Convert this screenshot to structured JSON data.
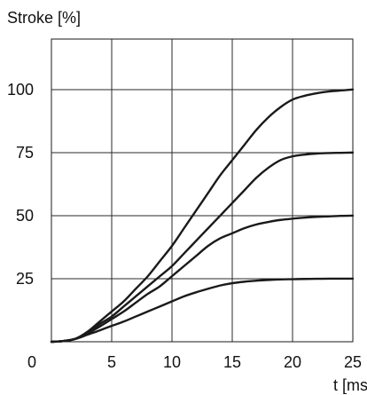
{
  "chart_data": {
    "type": "line",
    "title": "",
    "ylabel": "Stroke [%]",
    "xlabel": "t [ms]",
    "xlim": [
      0,
      25
    ],
    "ylim": [
      0,
      120
    ],
    "grid": true,
    "x_ticks": [
      0,
      5,
      10,
      15,
      20,
      25
    ],
    "y_ticks": [
      25,
      50,
      75,
      100
    ],
    "x_tick_labels": [
      "0",
      "5",
      "10",
      "15",
      "20",
      "25"
    ],
    "y_tick_labels": [
      "25",
      "50",
      "75",
      "100"
    ],
    "x": [
      0,
      1,
      2,
      3,
      4,
      5,
      6,
      7,
      8,
      9,
      10,
      11,
      12,
      13,
      14,
      15,
      16,
      17,
      18,
      19,
      20,
      21,
      22,
      23,
      24,
      25
    ],
    "series": [
      {
        "values": [
          0,
          0.3,
          1.2,
          4,
          8,
          12,
          16,
          21,
          26,
          32,
          38,
          45,
          52,
          59,
          66,
          72,
          78,
          84,
          89,
          93,
          96,
          97.5,
          98.5,
          99.2,
          99.6,
          100
        ]
      },
      {
        "values": [
          0,
          0.3,
          1.2,
          3.5,
          7,
          10,
          14,
          18,
          22,
          26,
          30,
          35,
          40,
          45,
          50,
          55,
          60,
          65,
          69,
          72,
          73.5,
          74.2,
          74.6,
          74.8,
          74.9,
          75
        ]
      },
      {
        "values": [
          0,
          0.3,
          1.2,
          3.3,
          6,
          9,
          12,
          15.5,
          19,
          22,
          26,
          30,
          34,
          38,
          41,
          43,
          45,
          46.5,
          47.5,
          48.3,
          48.8,
          49.2,
          49.5,
          49.7,
          49.9,
          50
        ]
      },
      {
        "values": [
          0,
          0.3,
          1.1,
          2.8,
          4.5,
          6.3,
          8,
          10,
          12,
          14,
          16,
          18,
          19.6,
          21,
          22.3,
          23.2,
          23.8,
          24.2,
          24.5,
          24.7,
          24.8,
          24.9,
          24.95,
          25,
          25,
          25
        ]
      }
    ]
  }
}
